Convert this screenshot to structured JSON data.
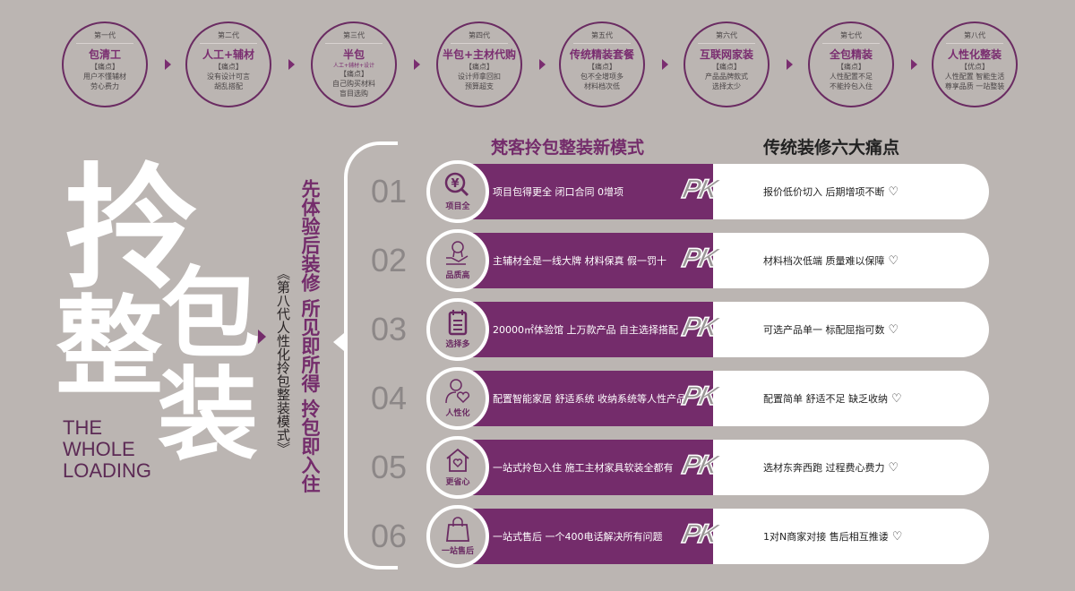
{
  "generations": [
    {
      "gen": "第一代",
      "title": "包清工",
      "tag": "【痛点】",
      "lines": [
        "用户不懂辅材",
        "劳心费力"
      ]
    },
    {
      "gen": "第二代",
      "title": "人工+辅材",
      "tag": "【痛点】",
      "lines": [
        "没有设计可言",
        "胡乱搭配"
      ]
    },
    {
      "gen": "第三代",
      "title": "半包",
      "sub": "人工+辅材+设计",
      "tag": "【痛点】",
      "lines": [
        "自己购买材料",
        "盲目选购"
      ]
    },
    {
      "gen": "第四代",
      "title": "半包+主材代购",
      "tag": "【痛点】",
      "lines": [
        "设计师拿回扣",
        "预算超支"
      ]
    },
    {
      "gen": "第五代",
      "title": "传统精装套餐",
      "tag": "【痛点】",
      "lines": [
        "包不全增项多",
        "材料档次低"
      ]
    },
    {
      "gen": "第六代",
      "title": "互联网家装",
      "tag": "【痛点】",
      "lines": [
        "产品品牌款式",
        "选择太少"
      ]
    },
    {
      "gen": "第七代",
      "title": "全包精装",
      "tag": "【痛点】",
      "lines": [
        "人性配置不足",
        "不能拎包入住"
      ]
    },
    {
      "gen": "第八代",
      "title": "人性化整装",
      "tag": "【优点】",
      "lines": [
        "人性配置  智能生活",
        "尊享品质  一站整装"
      ]
    }
  ],
  "hero": {
    "chars": [
      "拎",
      "包",
      "整",
      "装"
    ],
    "english": [
      "THE",
      "WHOLE",
      "LOADING"
    ],
    "subtitle": "《第八代人性化拎包整装模式》",
    "slogan": "先体验后装修  所见即所得  拎包即入住"
  },
  "headers": {
    "left": "梵客拎包整装新模式",
    "right": "传统装修六大痛点"
  },
  "pk_label": "PK",
  "rows": [
    {
      "num": "01",
      "icon": "yuan-search-icon",
      "label": "项目全",
      "benefit": "项目包得更全  闭口合同  0增项",
      "pain": "报价低价切入  后期增项不断"
    },
    {
      "num": "02",
      "icon": "award-hand-icon",
      "label": "品质高",
      "benefit": "主辅材全是一线大牌  材料保真  假一罚十",
      "pain": "材料档次低端  质量难以保障"
    },
    {
      "num": "03",
      "icon": "calendar-list-icon",
      "label": "选择多",
      "benefit": "20000㎡体验馆  上万款产品  自主选择搭配",
      "pain": "可选产品单一  标配屈指可数"
    },
    {
      "num": "04",
      "icon": "person-heart-icon",
      "label": "人性化",
      "benefit": "配置智能家居  舒适系统  收纳系统等人性产品",
      "pain": "配置简单  舒适不足  缺乏收纳"
    },
    {
      "num": "05",
      "icon": "house-heart-icon",
      "label": "更省心",
      "benefit": "一站式拎包入住  施工主材家具软装全都有",
      "pain": "选材东奔西跑  过程费心费力"
    },
    {
      "num": "06",
      "icon": "shopping-bag-icon",
      "label": "一站售后",
      "benefit": "一站式售后  一个400电话解决所有问题",
      "pain": "1对N商家对接  售后相互推诿"
    }
  ],
  "colors": {
    "background": "#bbb5b2",
    "purple": "#742c6b",
    "white": "#ffffff"
  }
}
